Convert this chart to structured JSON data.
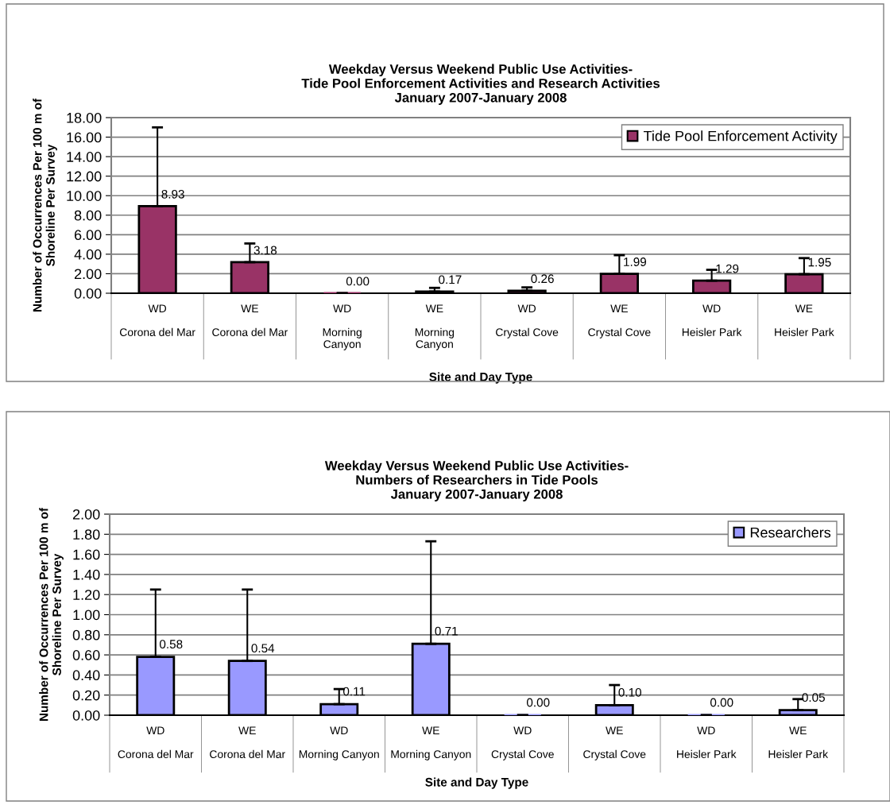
{
  "chart_data": [
    {
      "type": "bar",
      "title": "Weekday Versus Weekend Public Use Activities-\nTide Pool Enforcement Activities and Research Activities\nJanuary 2007-January 2008",
      "xlabel": "Site and Day Type",
      "ylabel": "Number of Occurrences Per 100 m of\nShoreline Per Survey",
      "categories": [
        "WD\n\nCorona del Mar",
        "WE\n\nCorona del Mar",
        "WD\n\nMorning\nCanyon",
        "WE\n\nMorning\nCanyon",
        "WD\n\nCrystal Cove",
        "WE\n\nCrystal Cove",
        "WD\n\nHeisler Park",
        "WE\n\nHeisler Park"
      ],
      "series": [
        {
          "name": "Tide Pool Enforcement Activity",
          "color": "#993366",
          "values": [
            8.93,
            3.18,
            0.0,
            0.17,
            0.26,
            1.99,
            1.29,
            1.95
          ],
          "errors": [
            [
              8.93,
              17.0
            ],
            [
              3.18,
              5.1
            ],
            [
              0.0,
              0.0
            ],
            [
              0.17,
              0.55
            ],
            [
              0.26,
              0.6
            ],
            [
              1.99,
              3.9
            ],
            [
              1.29,
              2.4
            ],
            [
              1.95,
              3.6
            ]
          ],
          "value_labels": [
            "8.93",
            "3.18",
            "0.00",
            "0.17",
            "0.26",
            "1.99",
            "1.29",
            "1.95"
          ]
        }
      ],
      "ylim": [
        0,
        18
      ],
      "yticks": [
        {
          "value": 0,
          "label": "0.00"
        },
        {
          "value": 2,
          "label": "2.00"
        },
        {
          "value": 4,
          "label": "4.00"
        },
        {
          "value": 6,
          "label": "6.00"
        },
        {
          "value": 8,
          "label": "8.00"
        },
        {
          "value": 10,
          "label": "10.00"
        },
        {
          "value": 12,
          "label": "12.00"
        },
        {
          "value": 14,
          "label": "14.00"
        },
        {
          "value": 16,
          "label": "16.00"
        },
        {
          "value": 18,
          "label": "18.00"
        }
      ],
      "grid": "y",
      "legend": "top right"
    },
    {
      "type": "bar",
      "title": "Weekday Versus Weekend Public Use Activities-\nNumbers of Researchers in Tide Pools\nJanuary 2007-January 2008",
      "xlabel": "Site and Day Type",
      "ylabel": "Number of Occurrences Per 100 m of\nShoreline Per Survey",
      "categories": [
        "WD\n\nCorona del Mar",
        "WE\n\nCorona del Mar",
        "WD\n\nMorning Canyon",
        "WE\n\nMorning Canyon",
        "WD\n\nCrystal Cove",
        "WE\n\nCrystal Cove",
        "WD\n\nHeisler Park",
        "WE\n\nHeisler Park"
      ],
      "series": [
        {
          "name": "Researchers",
          "color": "#9999ff",
          "values": [
            0.58,
            0.54,
            0.11,
            0.71,
            0.0,
            0.1,
            0.0,
            0.05
          ],
          "errors": [
            [
              0.58,
              1.25
            ],
            [
              0.54,
              1.25
            ],
            [
              0.11,
              0.26
            ],
            [
              0.71,
              1.73
            ],
            [
              0.0,
              0.0
            ],
            [
              0.1,
              0.3
            ],
            [
              0.0,
              0.0
            ],
            [
              0.05,
              0.16
            ]
          ],
          "value_labels": [
            "0.58",
            "0.54",
            "0.11",
            "0.71",
            "0.00",
            "0.10",
            "0.00",
            "0.05"
          ]
        }
      ],
      "ylim": [
        0,
        2
      ],
      "yticks": [
        {
          "value": 0,
          "label": "0.00"
        },
        {
          "value": 0.2,
          "label": "0.20"
        },
        {
          "value": 0.4,
          "label": "0.40"
        },
        {
          "value": 0.6,
          "label": "0.60"
        },
        {
          "value": 0.8,
          "label": "0.80"
        },
        {
          "value": 1.0,
          "label": "1.00"
        },
        {
          "value": 1.2,
          "label": "1.20"
        },
        {
          "value": 1.4,
          "label": "1.40"
        },
        {
          "value": 1.6,
          "label": "1.60"
        },
        {
          "value": 1.8,
          "label": "1.80"
        },
        {
          "value": 2.0,
          "label": "2.00"
        }
      ],
      "grid": "y",
      "legend": "top right"
    }
  ]
}
